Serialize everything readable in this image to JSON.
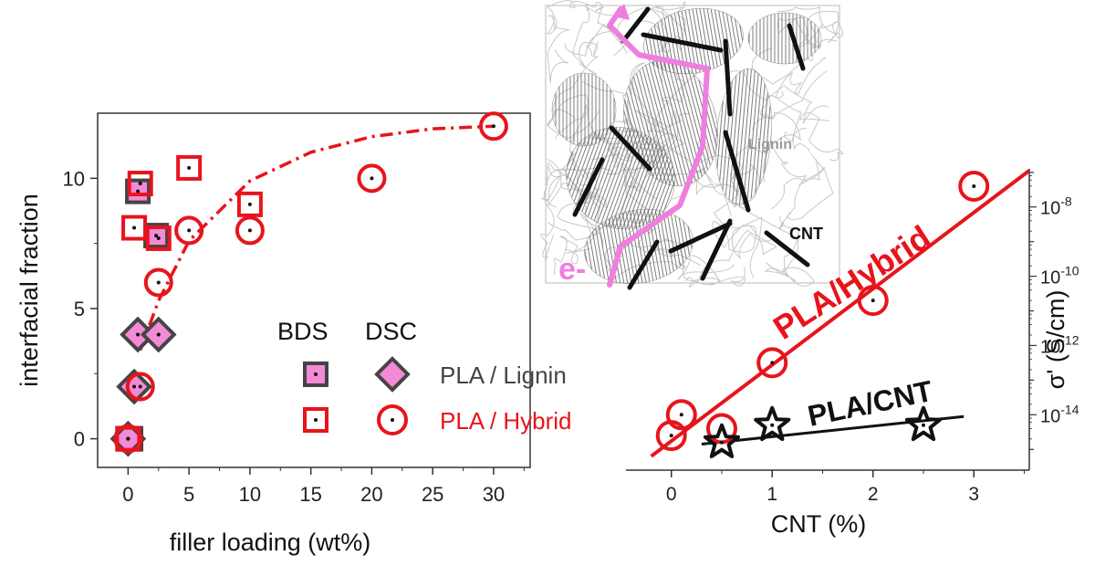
{
  "chart_data": [
    {
      "type": "scatter",
      "panel": "left",
      "xlabel": "filler loading (wt%)",
      "ylabel": "interfacial fraction",
      "xlim": [
        -2.5,
        33
      ],
      "ylim": [
        -1.1,
        12.5
      ],
      "xticks": [
        0,
        5,
        10,
        15,
        20,
        25,
        30
      ],
      "yticks": [
        0,
        5,
        10
      ],
      "legend": {
        "header": [
          "BDS",
          "DSC"
        ],
        "rows": [
          "PLA / Lignin",
          "PLA / Hybrid"
        ]
      },
      "series": [
        {
          "name": "PLA / Lignin BDS",
          "marker": "square-filled",
          "color": "#e0119a",
          "points": [
            [
              0.2,
              0
            ],
            [
              0.8,
              9.5
            ],
            [
              2.3,
              7.8
            ],
            [
              0.0,
              0
            ]
          ]
        },
        {
          "name": "PLA / Lignin DSC",
          "marker": "diamond",
          "color": "#e0119a",
          "points": [
            [
              0,
              0
            ],
            [
              0.5,
              2
            ],
            [
              0.8,
              4
            ],
            [
              2.5,
              4
            ]
          ]
        },
        {
          "name": "PLA / Hybrid BDS",
          "marker": "square-open",
          "color": "#e8141c",
          "points": [
            [
              0,
              0
            ],
            [
              0.5,
              8.1
            ],
            [
              1,
              9.8
            ],
            [
              2.5,
              7.7
            ],
            [
              5,
              10.4
            ],
            [
              10,
              9
            ]
          ]
        },
        {
          "name": "PLA / Hybrid DSC",
          "marker": "circle-open",
          "color": "#e8141c",
          "points": [
            [
              0,
              0
            ],
            [
              1,
              2
            ],
            [
              2.5,
              6
            ],
            [
              5,
              8
            ],
            [
              10,
              8
            ],
            [
              20,
              10
            ],
            [
              30,
              12
            ]
          ]
        }
      ],
      "fit": {
        "name": "PLA / Hybrid fit",
        "style": "dash-dot",
        "color": "#e8141c",
        "points": [
          [
            1,
            3.4
          ],
          [
            2.5,
            5.3
          ],
          [
            5,
            7.6
          ],
          [
            10,
            9.9
          ],
          [
            15,
            11
          ],
          [
            20,
            11.6
          ],
          [
            25,
            11.9
          ],
          [
            30,
            12
          ]
        ]
      }
    },
    {
      "type": "scatter",
      "panel": "right",
      "xlabel": "CNT (%)",
      "ylabel": "σ' (S/cm)",
      "xlim": [
        -0.45,
        3.55
      ],
      "ylim": [
        -15.6,
        -6.9
      ],
      "xticks": [
        0,
        1,
        2,
        3
      ],
      "yticks": [
        -8,
        -10,
        -12,
        -14
      ],
      "ytick_labels": [
        "10-8",
        "10-10",
        "10-12",
        "10-14"
      ],
      "series": [
        {
          "name": "PLA/Hybrid",
          "marker": "circle-open",
          "color": "#e8141c",
          "points": [
            [
              0,
              -14.6
            ],
            [
              0.1,
              -14
            ],
            [
              0.5,
              -14.4
            ],
            [
              1,
              -12.5
            ],
            [
              2,
              -10.7
            ],
            [
              3,
              -7.4
            ]
          ]
        },
        {
          "name": "PLA/CNT",
          "marker": "star-open",
          "color": "#111111",
          "points": [
            [
              0.5,
              -14.8
            ],
            [
              1,
              -14.3
            ],
            [
              2.5,
              -14.3
            ]
          ]
        }
      ],
      "fits": [
        {
          "name": "PLA/Hybrid",
          "color": "#e8141c",
          "points": [
            [
              -0.2,
              -15.2
            ],
            [
              3.55,
              -6.95
            ]
          ]
        },
        {
          "name": "PLA/CNT",
          "color": "#111111",
          "points": [
            [
              0.3,
              -14.85
            ],
            [
              2.9,
              -14.05
            ]
          ]
        }
      ],
      "annotations": [
        "PLA/Hybrid",
        "PLA/CNT"
      ]
    }
  ],
  "schematic": {
    "labels": {
      "lignin": "Lignin",
      "cnt": "CNT",
      "electron": "e-"
    },
    "colors": {
      "path": "#f07ee0",
      "cnt": "#111111",
      "lignin": "#9a9a9a",
      "network": "#c8c8c8"
    }
  }
}
